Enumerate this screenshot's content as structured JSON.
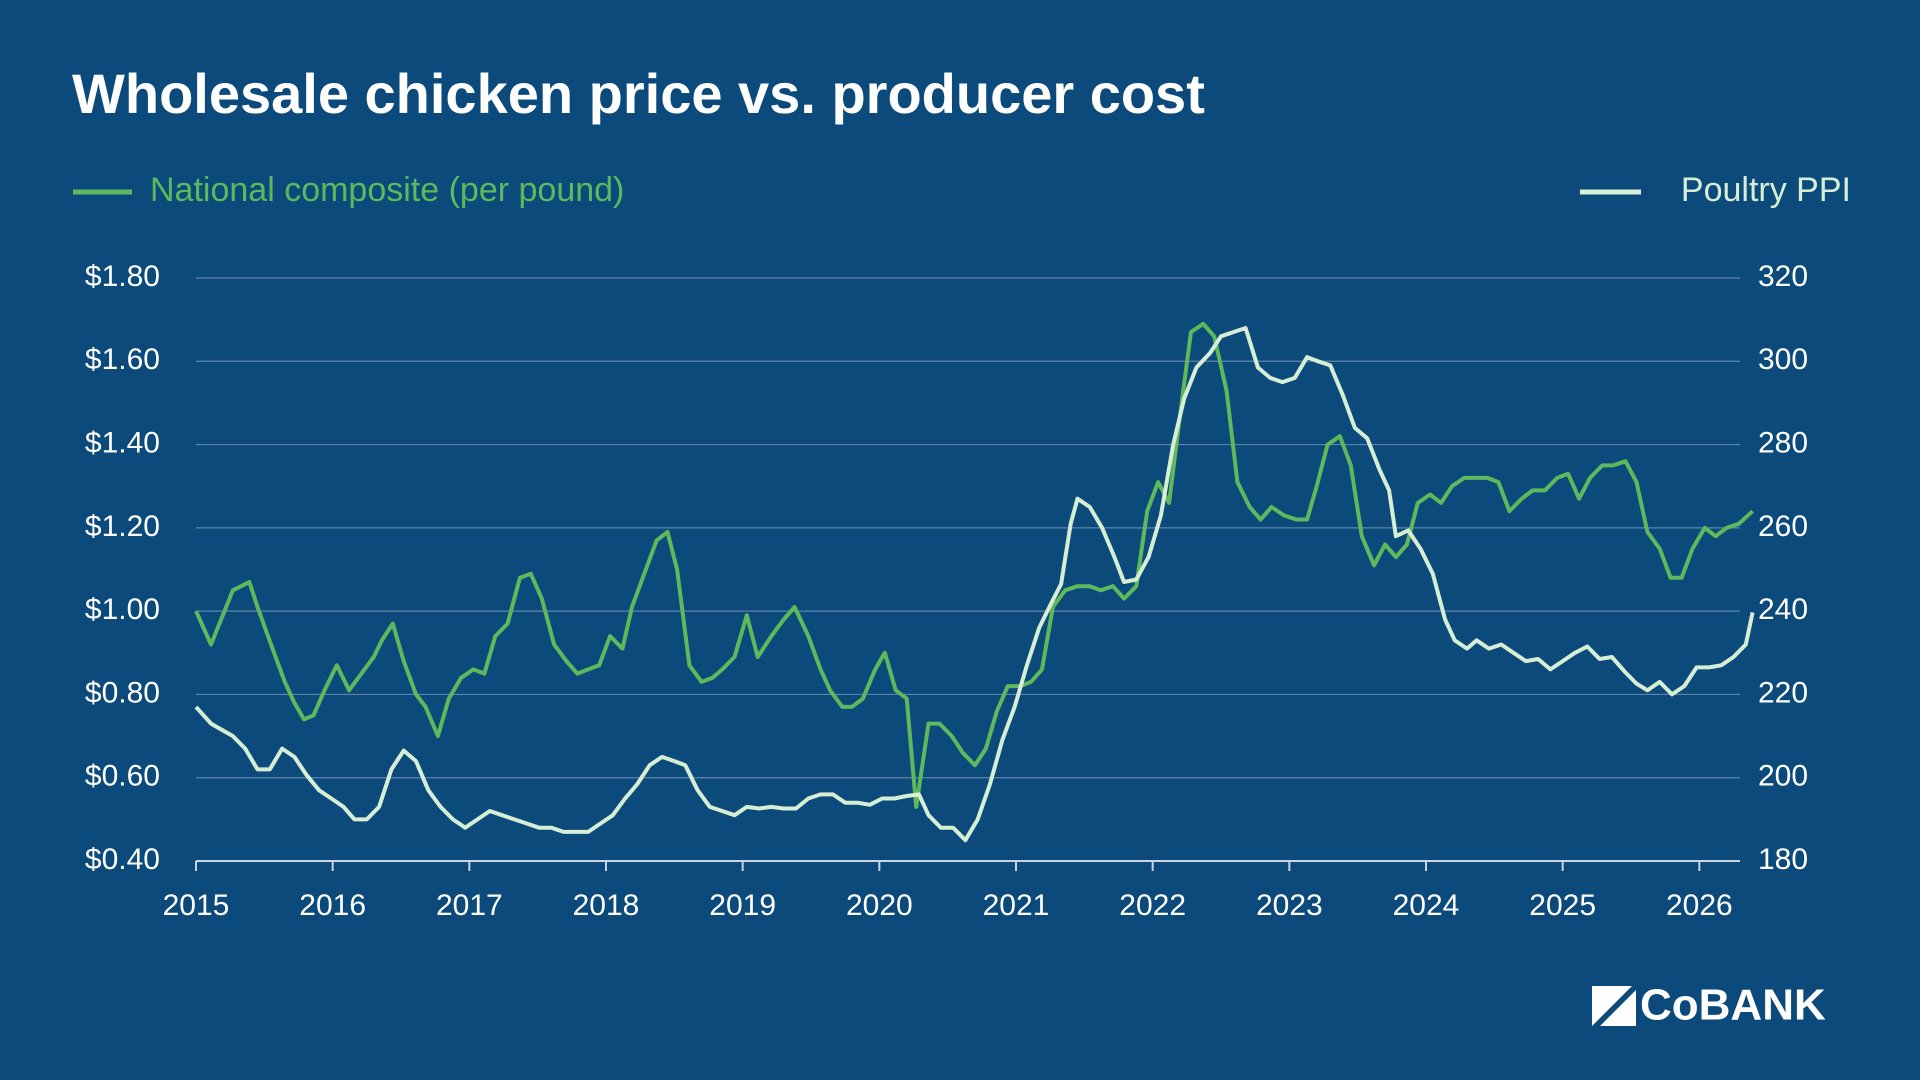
{
  "chart_data": {
    "type": "line",
    "title": "Wholesale chicken price vs. producer cost",
    "logo": "CoBANK",
    "xlim": [
      2015,
      2026.4
    ],
    "xticks": [
      2015,
      2016,
      2017,
      2018,
      2019,
      2020,
      2021,
      2022,
      2023,
      2024,
      2025,
      2026
    ],
    "ylim": [
      0.4,
      1.8
    ],
    "yticks": [
      {
        "value": 0.4,
        "label": "$0.40"
      },
      {
        "value": 0.6,
        "label": "$0.60"
      },
      {
        "value": 0.8,
        "label": "$0.80"
      },
      {
        "value": 1.0,
        "label": "$1.00"
      },
      {
        "value": 1.2,
        "label": "$1.20"
      },
      {
        "value": 1.4,
        "label": "$1.40"
      },
      {
        "value": 1.6,
        "label": "$1.60"
      },
      {
        "value": 1.8,
        "label": "$1.80"
      }
    ],
    "y2lim": [
      180,
      320
    ],
    "y2ticks": [
      180,
      200,
      220,
      240,
      260,
      280,
      300,
      320
    ],
    "grid": true,
    "series": [
      {
        "name": "National composite (per pound)",
        "color": "#5fb85c",
        "axis": "y",
        "x": [
          2015.0,
          2015.11,
          2015.27,
          2015.39,
          2015.45,
          2015.56,
          2015.65,
          2015.72,
          2015.79,
          2015.86,
          2015.94,
          2016.03,
          2016.12,
          2016.21,
          2016.3,
          2016.36,
          2016.44,
          2016.52,
          2016.61,
          2016.68,
          2016.77,
          2016.85,
          2016.94,
          2017.03,
          2017.11,
          2017.19,
          2017.28,
          2017.37,
          2017.45,
          2017.53,
          2017.62,
          2017.71,
          2017.79,
          2017.87,
          2017.95,
          2018.03,
          2018.12,
          2018.19,
          2018.28,
          2018.37,
          2018.45,
          2018.52,
          2018.61,
          2018.7,
          2018.78,
          2018.85,
          2018.94,
          2019.03,
          2019.11,
          2019.21,
          2019.3,
          2019.38,
          2019.48,
          2019.57,
          2019.64,
          2019.73,
          2019.8,
          2019.88,
          2019.97,
          2020.04,
          2020.12,
          2020.2,
          2020.27,
          2020.36,
          2020.44,
          2020.53,
          2020.61,
          2020.7,
          2020.78,
          2020.86,
          2020.94,
          2021.03,
          2021.11,
          2021.19,
          2021.27,
          2021.36,
          2021.45,
          2021.54,
          2021.62,
          2021.71,
          2021.79,
          2021.88,
          2021.96,
          2022.04,
          2022.12,
          2022.2,
          2022.28,
          2022.37,
          2022.45,
          2022.54,
          2022.62,
          2022.71,
          2022.79,
          2022.87,
          2022.96,
          2023.05,
          2023.13,
          2023.2,
          2023.28,
          2023.37,
          2023.45,
          2023.53,
          2023.62,
          2023.7,
          2023.78,
          2023.86,
          2023.94,
          2024.03,
          2024.11,
          2024.19,
          2024.28,
          2024.36,
          2024.45,
          2024.53,
          2024.61,
          2024.7,
          2024.78,
          2024.87,
          2024.96,
          2025.04,
          2025.12,
          2025.2,
          2025.29,
          2025.37,
          2025.46,
          2025.54,
          2025.62,
          2025.71,
          2025.79,
          2025.87,
          2025.95,
          2026.04,
          2026.12,
          2026.2,
          2026.29,
          2026.39
        ],
        "values": [
          1.0,
          0.92,
          1.05,
          1.07,
          1.01,
          0.91,
          0.83,
          0.78,
          0.74,
          0.75,
          0.81,
          0.87,
          0.81,
          0.85,
          0.89,
          0.93,
          0.97,
          0.88,
          0.8,
          0.77,
          0.7,
          0.79,
          0.84,
          0.86,
          0.85,
          0.94,
          0.97,
          1.08,
          1.09,
          1.03,
          0.92,
          0.88,
          0.85,
          0.86,
          0.87,
          0.94,
          0.91,
          1.01,
          1.09,
          1.17,
          1.19,
          1.1,
          0.87,
          0.83,
          0.84,
          0.86,
          0.89,
          0.99,
          0.89,
          0.94,
          0.98,
          1.01,
          0.94,
          0.86,
          0.81,
          0.77,
          0.77,
          0.79,
          0.86,
          0.9,
          0.81,
          0.79,
          0.53,
          0.73,
          0.73,
          0.7,
          0.66,
          0.63,
          0.67,
          0.76,
          0.82,
          0.82,
          0.83,
          0.86,
          1.01,
          1.05,
          1.06,
          1.06,
          1.05,
          1.06,
          1.03,
          1.06,
          1.24,
          1.31,
          1.26,
          1.47,
          1.67,
          1.69,
          1.66,
          1.53,
          1.31,
          1.25,
          1.22,
          1.25,
          1.23,
          1.22,
          1.22,
          1.3,
          1.4,
          1.42,
          1.35,
          1.18,
          1.11,
          1.16,
          1.13,
          1.16,
          1.26,
          1.28,
          1.26,
          1.3,
          1.32,
          1.32,
          1.32,
          1.31,
          1.24,
          1.27,
          1.29,
          1.29,
          1.32,
          1.33,
          1.27,
          1.32,
          1.35,
          1.35,
          1.36,
          1.31,
          1.19,
          1.15,
          1.08,
          1.08,
          1.15,
          1.2,
          1.18,
          1.2,
          1.21,
          1.24
        ]
      },
      {
        "name": "Poultry PPI",
        "color": "#d6eed4",
        "axis": "y2",
        "x": [
          2015.0,
          2015.11,
          2015.27,
          2015.36,
          2015.45,
          2015.54,
          2015.63,
          2015.72,
          2015.81,
          2015.9,
          2015.99,
          2016.08,
          2016.16,
          2016.25,
          2016.34,
          2016.43,
          2016.52,
          2016.61,
          2016.7,
          2016.79,
          2016.88,
          2016.97,
          2017.06,
          2017.15,
          2017.24,
          2017.33,
          2017.42,
          2017.51,
          2017.6,
          2017.69,
          2017.78,
          2017.87,
          2017.96,
          2018.05,
          2018.14,
          2018.23,
          2018.32,
          2018.41,
          2018.5,
          2018.58,
          2018.67,
          2018.76,
          2018.85,
          2018.94,
          2019.03,
          2019.12,
          2019.21,
          2019.3,
          2019.39,
          2019.48,
          2019.57,
          2019.66,
          2019.75,
          2019.84,
          2019.93,
          2020.02,
          2020.11,
          2020.2,
          2020.29,
          2020.36,
          2020.45,
          2020.54,
          2020.63,
          2020.72,
          2020.81,
          2020.9,
          2020.99,
          2021.08,
          2021.17,
          2021.26,
          2021.33,
          2021.4,
          2021.45,
          2021.54,
          2021.63,
          2021.72,
          2021.79,
          2021.88,
          2021.97,
          2022.06,
          2022.15,
          2022.23,
          2022.32,
          2022.42,
          2022.5,
          2022.59,
          2022.68,
          2022.77,
          2022.86,
          2022.95,
          2023.04,
          2023.13,
          2023.21,
          2023.3,
          2023.39,
          2023.48,
          2023.57,
          2023.66,
          2023.73,
          2023.78,
          2023.87,
          2023.96,
          2024.05,
          2024.14,
          2024.21,
          2024.3,
          2024.37,
          2024.46,
          2024.55,
          2024.64,
          2024.73,
          2024.82,
          2024.91,
          2025.0,
          2025.09,
          2025.18,
          2025.27,
          2025.36,
          2025.45,
          2025.54,
          2025.62,
          2025.71,
          2025.8,
          2025.89,
          2025.98,
          2026.07,
          2026.16,
          2026.25,
          2026.34,
          2026.39
        ],
        "values": [
          217,
          213,
          210,
          207,
          202,
          202,
          207,
          205,
          200.6,
          197,
          195,
          193,
          190,
          190,
          193,
          202,
          206.5,
          204,
          197,
          193,
          190,
          188,
          190,
          192,
          191,
          190,
          189,
          188,
          188,
          187,
          187,
          187,
          189,
          191,
          195,
          198.5,
          203,
          205,
          204,
          203,
          197,
          193,
          192,
          191,
          193,
          192.6,
          193,
          192.6,
          192.6,
          195,
          196,
          196,
          194,
          194,
          193.5,
          195,
          195,
          195.6,
          196,
          191,
          188,
          188,
          185,
          190,
          198.5,
          209,
          217,
          227,
          236,
          242,
          246.5,
          261,
          267,
          265,
          260,
          253,
          247,
          247.6,
          253,
          263,
          280,
          291,
          298.5,
          302,
          306,
          307,
          308,
          298.5,
          296,
          295,
          296,
          301,
          300,
          299,
          292,
          284,
          281.5,
          274,
          269,
          258,
          259.4,
          255,
          249,
          238,
          233,
          231,
          233,
          231,
          232,
          230,
          228,
          228.5,
          226,
          228,
          230,
          231.5,
          228.5,
          229,
          225.6,
          222.6,
          221,
          223,
          220,
          222,
          226.5,
          226.5,
          227,
          229,
          232,
          239.7
        ]
      }
    ]
  }
}
